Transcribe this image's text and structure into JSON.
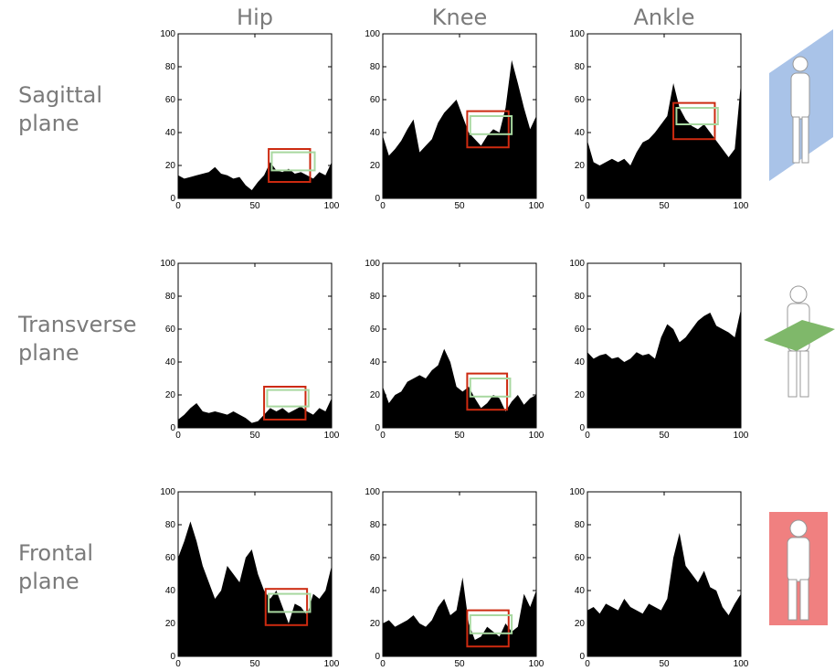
{
  "column_labels": [
    "Hip",
    "Knee",
    "Ankle"
  ],
  "row_labels": [
    [
      "Sagittal",
      "plane"
    ],
    [
      "Transverse",
      "plane"
    ],
    [
      "Frontal",
      "plane"
    ]
  ],
  "chart_data": [
    {
      "type": "area",
      "color": "#000000",
      "xlim": [
        0,
        100
      ],
      "ylim": [
        0,
        100
      ],
      "xticks": [
        0,
        50,
        100
      ],
      "yticks": [
        0,
        20,
        40,
        60,
        80,
        100
      ],
      "x": [
        0,
        4,
        8,
        12,
        16,
        20,
        24,
        28,
        32,
        36,
        40,
        44,
        48,
        52,
        56,
        60,
        64,
        68,
        72,
        76,
        80,
        84,
        88,
        92,
        96,
        100
      ],
      "values": [
        14,
        12,
        13,
        14,
        15,
        16,
        19,
        15,
        14,
        12,
        13,
        8,
        5,
        10,
        14,
        22,
        17,
        16,
        18,
        15,
        16,
        14,
        12,
        16,
        14,
        22
      ],
      "highlights": [
        {
          "color": "#cc2a10",
          "x": [
            59,
            86
          ],
          "y": [
            10,
            30
          ]
        },
        {
          "color": "#a8d8a0",
          "x": [
            61,
            89
          ],
          "y": [
            17,
            28
          ]
        }
      ]
    },
    {
      "type": "area",
      "color": "#000000",
      "xlim": [
        0,
        100
      ],
      "ylim": [
        0,
        100
      ],
      "xticks": [
        0,
        50,
        100
      ],
      "yticks": [
        0,
        20,
        40,
        60,
        80,
        100
      ],
      "x": [
        0,
        4,
        8,
        12,
        16,
        20,
        24,
        28,
        32,
        36,
        40,
        44,
        48,
        52,
        56,
        60,
        64,
        68,
        72,
        76,
        80,
        84,
        88,
        92,
        96,
        100
      ],
      "values": [
        38,
        26,
        30,
        35,
        42,
        48,
        28,
        32,
        36,
        46,
        52,
        56,
        60,
        50,
        40,
        36,
        32,
        38,
        42,
        40,
        55,
        84,
        70,
        55,
        42,
        50
      ],
      "highlights": [
        {
          "color": "#cc2a10",
          "x": [
            55,
            82
          ],
          "y": [
            31,
            53
          ]
        },
        {
          "color": "#a8d8a0",
          "x": [
            57,
            84
          ],
          "y": [
            39,
            50
          ]
        }
      ]
    },
    {
      "type": "area",
      "color": "#000000",
      "xlim": [
        0,
        100
      ],
      "ylim": [
        0,
        100
      ],
      "xticks": [
        0,
        50,
        100
      ],
      "yticks": [
        0,
        20,
        40,
        60,
        80,
        100
      ],
      "x": [
        0,
        4,
        8,
        12,
        16,
        20,
        24,
        28,
        32,
        36,
        40,
        44,
        48,
        52,
        56,
        60,
        64,
        68,
        72,
        76,
        80,
        84,
        88,
        92,
        96,
        100
      ],
      "values": [
        35,
        22,
        20,
        22,
        24,
        22,
        24,
        20,
        28,
        34,
        36,
        40,
        45,
        50,
        70,
        55,
        48,
        44,
        42,
        45,
        40,
        35,
        30,
        25,
        30,
        70
      ],
      "highlights": [
        {
          "color": "#cc2a10",
          "x": [
            56,
            83
          ],
          "y": [
            36,
            58
          ]
        },
        {
          "color": "#a8d8a0",
          "x": [
            58,
            85
          ],
          "y": [
            45,
            55
          ]
        }
      ]
    },
    {
      "type": "area",
      "color": "#000000",
      "xlim": [
        0,
        100
      ],
      "ylim": [
        0,
        100
      ],
      "xticks": [
        0,
        50,
        100
      ],
      "yticks": [
        0,
        20,
        40,
        60,
        80,
        100
      ],
      "x": [
        0,
        4,
        8,
        12,
        16,
        20,
        24,
        28,
        32,
        36,
        40,
        44,
        48,
        52,
        56,
        60,
        64,
        68,
        72,
        76,
        80,
        84,
        88,
        92,
        96,
        100
      ],
      "values": [
        5,
        8,
        12,
        15,
        10,
        9,
        10,
        9,
        8,
        10,
        8,
        6,
        3,
        4,
        8,
        12,
        10,
        12,
        9,
        11,
        13,
        10,
        8,
        12,
        10,
        18
      ],
      "highlights": [
        {
          "color": "#cc2a10",
          "x": [
            56,
            83
          ],
          "y": [
            5,
            25
          ]
        },
        {
          "color": "#a8d8a0",
          "x": [
            58,
            85
          ],
          "y": [
            13,
            23
          ]
        }
      ]
    },
    {
      "type": "area",
      "color": "#000000",
      "xlim": [
        0,
        100
      ],
      "ylim": [
        0,
        100
      ],
      "xticks": [
        0,
        50,
        100
      ],
      "yticks": [
        0,
        20,
        40,
        60,
        80,
        100
      ],
      "x": [
        0,
        4,
        8,
        12,
        16,
        20,
        24,
        28,
        32,
        36,
        40,
        44,
        48,
        52,
        56,
        60,
        64,
        68,
        72,
        76,
        80,
        84,
        88,
        92,
        96,
        100
      ],
      "values": [
        25,
        15,
        20,
        22,
        28,
        30,
        32,
        30,
        35,
        38,
        48,
        40,
        25,
        22,
        25,
        18,
        12,
        15,
        20,
        18,
        10,
        16,
        20,
        14,
        18,
        20
      ],
      "highlights": [
        {
          "color": "#cc2a10",
          "x": [
            55,
            81
          ],
          "y": [
            11,
            33
          ]
        },
        {
          "color": "#a8d8a0",
          "x": [
            57,
            83
          ],
          "y": [
            19,
            30
          ]
        }
      ]
    },
    {
      "type": "area",
      "color": "#000000",
      "xlim": [
        0,
        100
      ],
      "ylim": [
        0,
        100
      ],
      "xticks": [
        0,
        50,
        100
      ],
      "yticks": [
        0,
        20,
        40,
        60,
        80,
        100
      ],
      "x": [
        0,
        4,
        8,
        12,
        16,
        20,
        24,
        28,
        32,
        36,
        40,
        44,
        48,
        52,
        56,
        60,
        64,
        68,
        72,
        76,
        80,
        84,
        88,
        92,
        96,
        100
      ],
      "values": [
        46,
        42,
        44,
        45,
        42,
        43,
        40,
        42,
        46,
        44,
        45,
        42,
        55,
        63,
        60,
        52,
        55,
        60,
        65,
        68,
        70,
        62,
        60,
        58,
        55,
        72
      ],
      "highlights": []
    },
    {
      "type": "area",
      "color": "#000000",
      "xlim": [
        0,
        100
      ],
      "ylim": [
        0,
        100
      ],
      "xticks": [
        0,
        50,
        100
      ],
      "yticks": [
        0,
        20,
        40,
        60,
        80,
        100
      ],
      "x": [
        0,
        4,
        8,
        12,
        16,
        20,
        24,
        28,
        32,
        36,
        40,
        44,
        48,
        52,
        56,
        60,
        64,
        68,
        72,
        76,
        80,
        84,
        88,
        92,
        96,
        100
      ],
      "values": [
        60,
        70,
        82,
        70,
        55,
        45,
        35,
        40,
        55,
        50,
        45,
        60,
        65,
        50,
        40,
        35,
        40,
        30,
        20,
        32,
        30,
        25,
        38,
        35,
        40,
        55
      ],
      "highlights": [
        {
          "color": "#cc2a10",
          "x": [
            57,
            84
          ],
          "y": [
            19,
            41
          ]
        },
        {
          "color": "#a8d8a0",
          "x": [
            59,
            86
          ],
          "y": [
            27,
            38
          ]
        }
      ]
    },
    {
      "type": "area",
      "color": "#000000",
      "xlim": [
        0,
        100
      ],
      "ylim": [
        0,
        100
      ],
      "xticks": [
        0,
        50,
        100
      ],
      "yticks": [
        0,
        20,
        40,
        60,
        80,
        100
      ],
      "x": [
        0,
        4,
        8,
        12,
        16,
        20,
        24,
        28,
        32,
        36,
        40,
        44,
        48,
        52,
        56,
        60,
        64,
        68,
        72,
        76,
        80,
        84,
        88,
        92,
        96,
        100
      ],
      "values": [
        20,
        22,
        18,
        20,
        22,
        25,
        20,
        18,
        22,
        30,
        35,
        25,
        28,
        48,
        20,
        10,
        12,
        18,
        15,
        12,
        20,
        15,
        18,
        38,
        30,
        40
      ],
      "highlights": [
        {
          "color": "#cc2a10",
          "x": [
            55,
            82
          ],
          "y": [
            6,
            28
          ]
        },
        {
          "color": "#a8d8a0",
          "x": [
            57,
            84
          ],
          "y": [
            14,
            25
          ]
        }
      ]
    },
    {
      "type": "area",
      "color": "#000000",
      "xlim": [
        0,
        100
      ],
      "ylim": [
        0,
        100
      ],
      "xticks": [
        0,
        50,
        100
      ],
      "yticks": [
        0,
        20,
        40,
        60,
        80,
        100
      ],
      "x": [
        0,
        4,
        8,
        12,
        16,
        20,
        24,
        28,
        32,
        36,
        40,
        44,
        48,
        52,
        56,
        60,
        64,
        68,
        72,
        76,
        80,
        84,
        88,
        92,
        96,
        100
      ],
      "values": [
        28,
        30,
        26,
        32,
        30,
        28,
        35,
        30,
        28,
        26,
        32,
        30,
        28,
        35,
        60,
        75,
        55,
        50,
        45,
        52,
        42,
        40,
        30,
        25,
        32,
        38
      ],
      "highlights": []
    }
  ]
}
